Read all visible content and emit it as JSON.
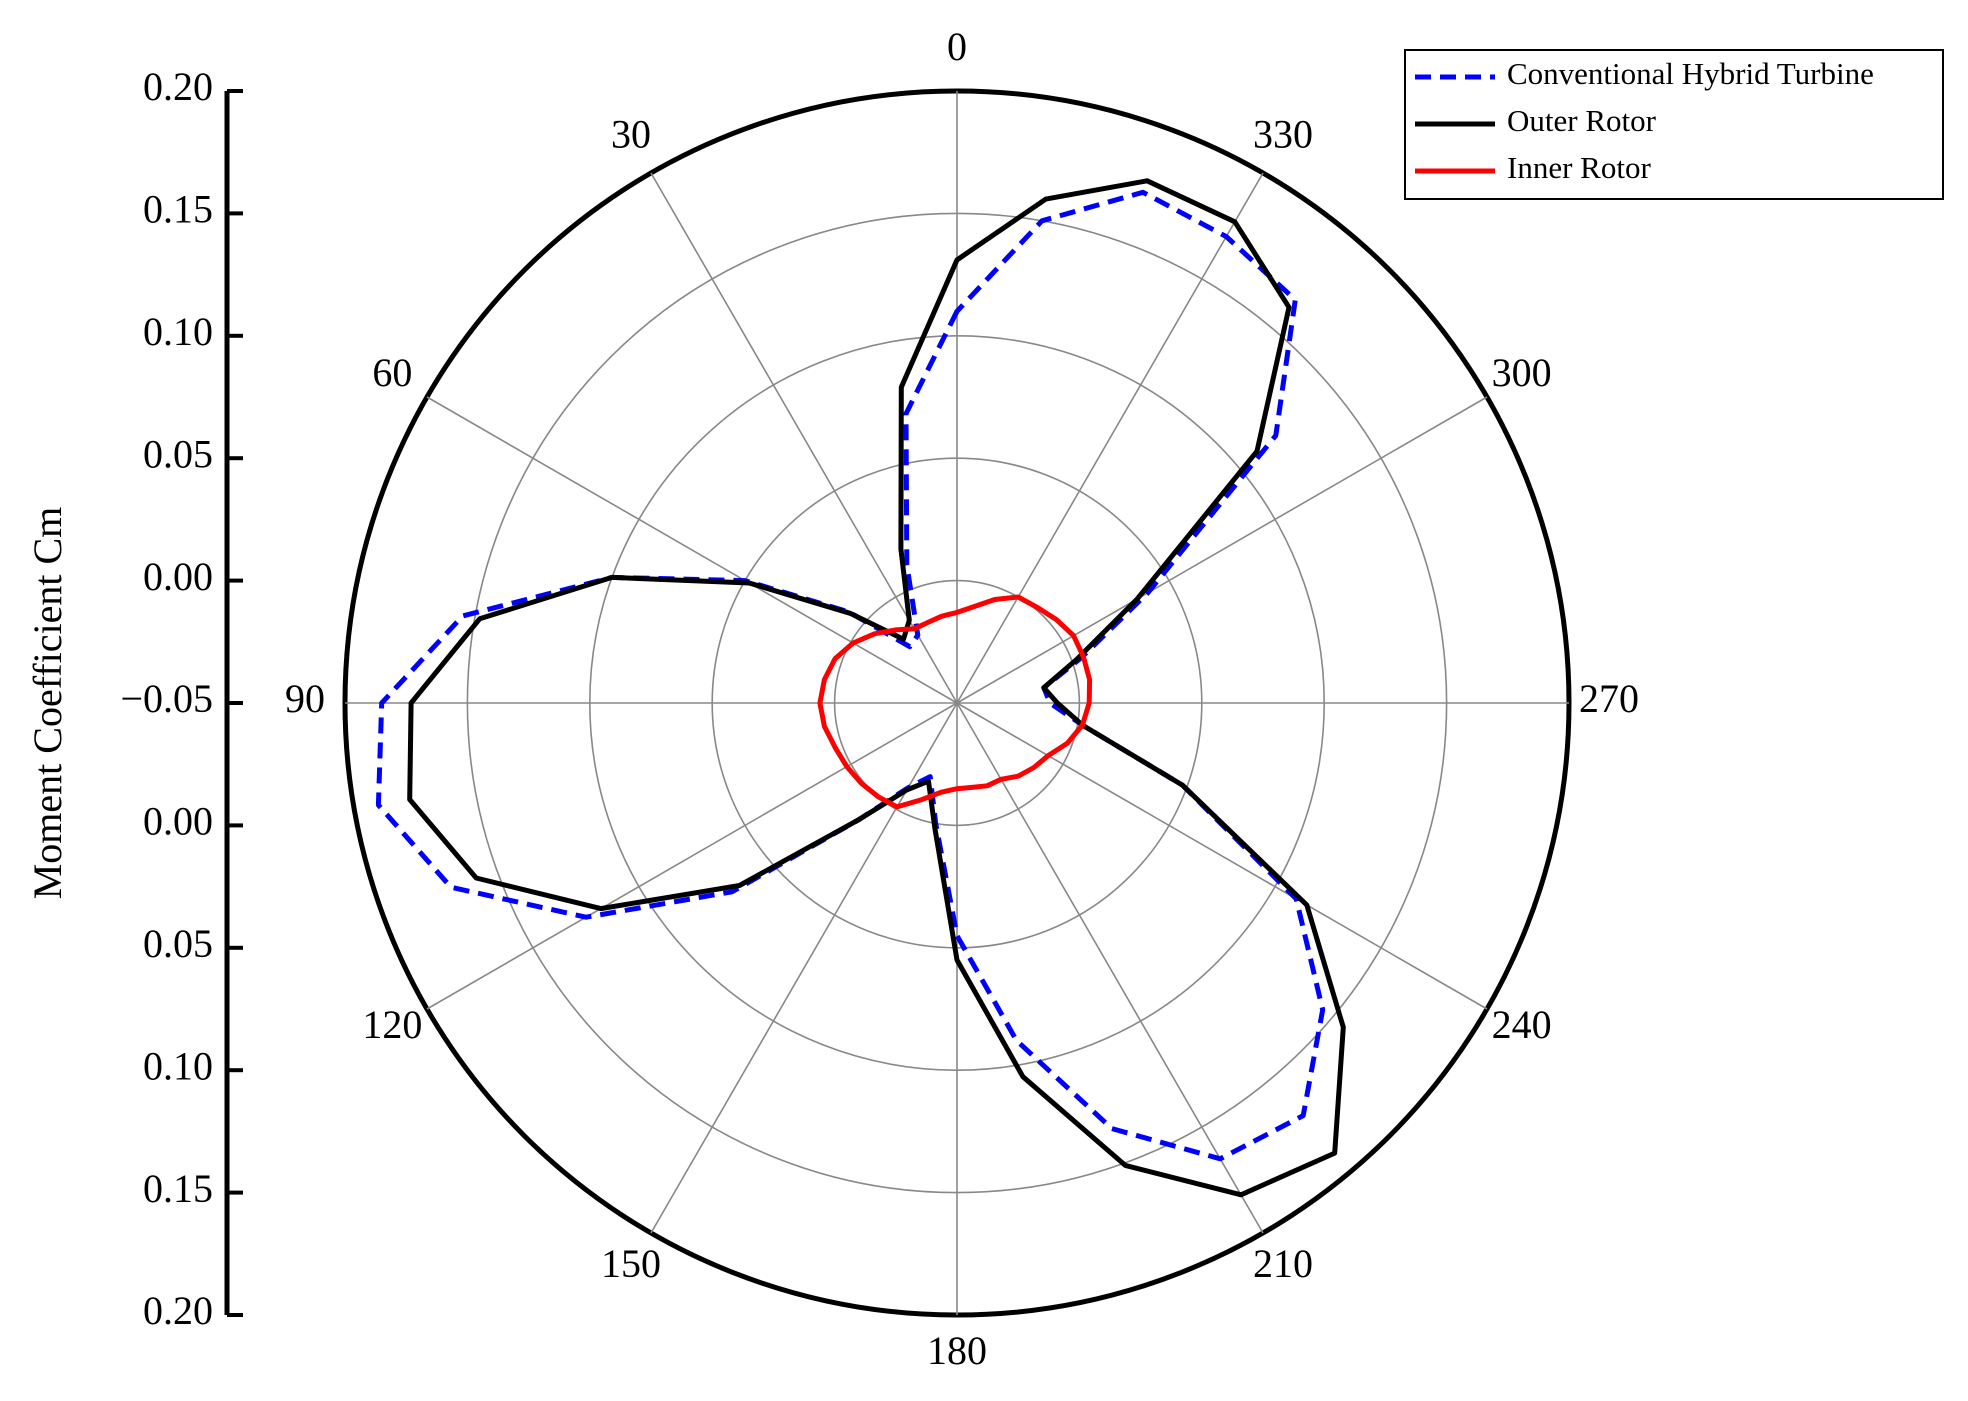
{
  "chart_data": {
    "type": "polar",
    "ylabel": "Moment Coefficient Cm",
    "rlim": [
      -0.05,
      0.2
    ],
    "yticks": [
      {
        "value": 0.2,
        "label": "0.20"
      },
      0.15,
      {
        "value": 0.1,
        "label": "0.10"
      },
      0.05,
      {
        "value": 0,
        "label": "0.00"
      },
      {
        "value": -0.05,
        "label": "−0.05"
      },
      {
        "value": 0,
        "label": "0.00"
      },
      0.05,
      {
        "value": 0.1,
        "label": "0.10"
      },
      0.15,
      {
        "value": 0.2,
        "label": "0.20"
      }
    ],
    "thetaticks": [
      0,
      30,
      60,
      90,
      120,
      150,
      180,
      210,
      240,
      270,
      300,
      330
    ],
    "direction": "counterclockwise",
    "zero": "top",
    "grid": true,
    "legend": "upper right",
    "theta": [
      0,
      10,
      20,
      30,
      40,
      50,
      60,
      70,
      80,
      90,
      100,
      110,
      120,
      130,
      140,
      150,
      160,
      170,
      180,
      190,
      200,
      210,
      220,
      230,
      240,
      250,
      260,
      270,
      280,
      290,
      300,
      310,
      320,
      330,
      340,
      350
    ],
    "series": [
      {
        "name": "Conventional Hybrid Turbine",
        "color": "#0000ff",
        "linestyle": "dashed",
        "values": [
          0.11,
          0.07,
          0.01,
          -0.018,
          -0.02,
          0.008,
          0.05,
          0.1,
          0.155,
          0.185,
          0.19,
          0.17,
          0.125,
          0.07,
          0.012,
          -0.01,
          -0.018,
          0.0,
          0.045,
          0.09,
          0.135,
          0.165,
          0.17,
          0.145,
          0.11,
          0.048,
          0.002,
          -0.012,
          -0.014,
          0.004,
          0.04,
          0.12,
          0.165,
          0.17,
          0.172,
          0.15
        ]
      },
      {
        "name": "Outer Rotor",
        "color": "#000000",
        "linestyle": "solid",
        "values": [
          0.131,
          0.081,
          0.017,
          -0.011,
          -0.016,
          0.007,
          0.048,
          0.1,
          0.148,
          0.173,
          0.177,
          0.159,
          0.118,
          0.066,
          0.012,
          -0.009,
          -0.016,
          0.002,
          0.055,
          0.105,
          0.151,
          0.182,
          0.19,
          0.156,
          0.115,
          0.048,
          0.002,
          -0.009,
          -0.014,
          0.002,
          0.035,
          0.11,
          0.161,
          0.177,
          0.177,
          0.159
        ]
      },
      {
        "name": "Inner Rotor",
        "color": "#ff0000",
        "linestyle": "solid",
        "values": [
          -0.013,
          -0.014,
          -0.015,
          -0.015,
          -0.011,
          -0.006,
          -0.001,
          0.003,
          0.005,
          0.006,
          0.005,
          0.003,
          0.002,
          0.001,
          0.0,
          -0.001,
          -0.008,
          -0.013,
          -0.015,
          -0.015,
          -0.014,
          -0.014,
          -0.011,
          -0.009,
          -0.007,
          -0.002,
          0.002,
          0.004,
          0.005,
          0.005,
          0.005,
          0.003,
          0.001,
          0.0,
          -0.005,
          -0.01
        ]
      }
    ]
  }
}
